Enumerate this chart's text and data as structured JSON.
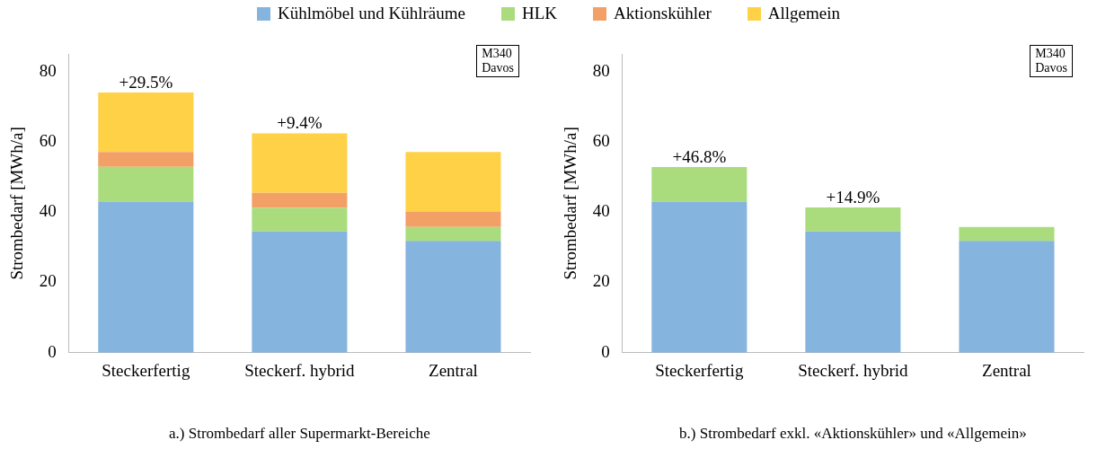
{
  "chart_data": [
    {
      "type": "bar",
      "stacked": true,
      "xlabel": "a.) Strombedarf aller Supermarkt-Bereiche",
      "ylabel": "Strombedarf [MWh/a]",
      "categories": [
        "Steckerfertig",
        "Steckerf. hybrid",
        "Zentral"
      ],
      "ylim": [
        0,
        85
      ],
      "yticks": [
        0,
        20,
        40,
        60,
        80
      ],
      "grid": false,
      "legend": "top",
      "series": [
        {
          "name": "Kühlmöbel und Kühlräume",
          "color": "#85b4df",
          "values": [
            43,
            34.5,
            31.8
          ]
        },
        {
          "name": "HLK",
          "color": "#aadc7d",
          "values": [
            9.9,
            6.7,
            4.0
          ]
        },
        {
          "name": "Aktionskühler",
          "color": "#f3a067",
          "values": [
            4.2,
            4.3,
            4.4
          ]
        },
        {
          "name": "Allgemein",
          "color": "#ffd147",
          "values": [
            16.9,
            16.9,
            16.9
          ]
        }
      ],
      "annotations": [
        {
          "text": "+29.5%",
          "x": "Steckerfertig",
          "y": 74
        },
        {
          "text": "+9.4%",
          "x": "Steckerf. hybrid",
          "y": 62.4
        },
        "M340\nDavos"
      ]
    },
    {
      "type": "bar",
      "stacked": true,
      "xlabel": "b.) Strombedarf exkl. «Aktionskühler» und «Allgemein»",
      "ylabel": "Strombedarf [MWh/a]",
      "categories": [
        "Steckerfertig",
        "Steckerf. hybrid",
        "Zentral"
      ],
      "ylim": [
        0,
        85
      ],
      "yticks": [
        0,
        20,
        40,
        60,
        80
      ],
      "grid": false,
      "series": [
        {
          "color": "#85b4df",
          "values": [
            43,
            34.5,
            31.8
          ]
        },
        {
          "color": "#aadc7d",
          "values": [
            9.8,
            6.8,
            4.0
          ]
        }
      ],
      "annotations": [
        {
          "text": "+46.8%",
          "x": "Steckerfertig",
          "y": 52.8
        },
        {
          "text": "+14.9%",
          "x": "Steckerf. hybrid",
          "y": 41.3
        },
        "M340\nDavos"
      ]
    }
  ]
}
